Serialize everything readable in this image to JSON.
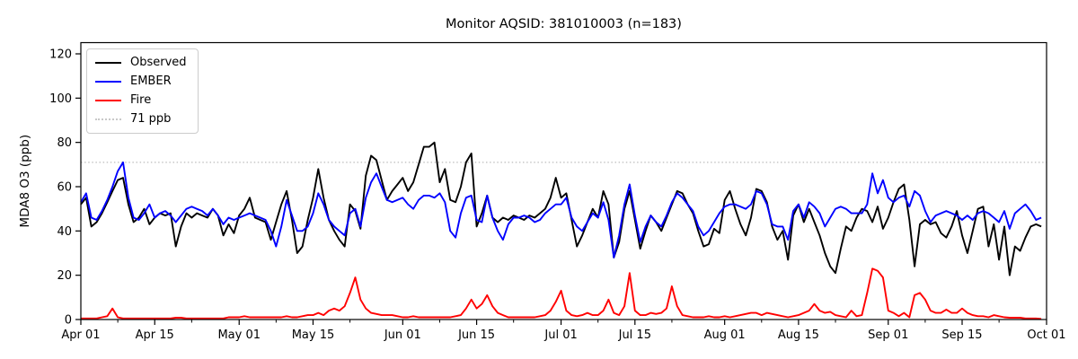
{
  "title": "Monitor AQSID: 381010003 (n=183)",
  "legend": {
    "items": [
      {
        "label": "Observed",
        "color": "#000000",
        "style": "solid"
      },
      {
        "label": "EMBER",
        "color": "#0000ff",
        "style": "solid"
      },
      {
        "label": "Fire",
        "color": "#ff0000",
        "style": "solid"
      },
      {
        "label": "71 ppb",
        "color": "#c8c8c8",
        "style": "dotted"
      }
    ]
  },
  "chart_data": {
    "type": "line",
    "title": "Monitor AQSID: 381010003 (n=183)",
    "xlabel": "",
    "ylabel": "MDA8 O3 (ppb)",
    "n_points": 183,
    "x_unit": "day index from Apr 01",
    "ylim": [
      0,
      125
    ],
    "yticks": [
      0,
      20,
      40,
      60,
      80,
      100,
      120
    ],
    "x_major_ticks": [
      {
        "day": 0,
        "label": "Apr 01"
      },
      {
        "day": 14,
        "label": "Apr 15"
      },
      {
        "day": 30,
        "label": "May 01"
      },
      {
        "day": 44,
        "label": "May 15"
      },
      {
        "day": 61,
        "label": "Jun 01"
      },
      {
        "day": 75,
        "label": "Jun 15"
      },
      {
        "day": 91,
        "label": "Jul 01"
      },
      {
        "day": 105,
        "label": "Jul 15"
      },
      {
        "day": 122,
        "label": "Aug 01"
      },
      {
        "day": 136,
        "label": "Aug 15"
      },
      {
        "day": 153,
        "label": "Sep 01"
      },
      {
        "day": 167,
        "label": "Sep 15"
      },
      {
        "day": 183,
        "label": "Oct 01"
      }
    ],
    "x_minor_tick_days": [
      7,
      21,
      37,
      51,
      68,
      82,
      98,
      112,
      129,
      143,
      160,
      174
    ],
    "threshold": {
      "value": 71,
      "label": "71 ppb",
      "color": "#c8c8c8",
      "linestyle": "dotted"
    },
    "grid": false,
    "legend_position": "upper left",
    "series": [
      {
        "name": "Observed",
        "color": "#000000",
        "values": [
          52,
          55,
          42,
          44,
          48,
          53,
          58,
          63,
          64,
          52,
          44,
          46,
          50,
          43,
          46,
          48,
          47,
          48,
          33,
          42,
          48,
          46,
          48,
          47,
          46,
          50,
          47,
          38,
          43,
          39,
          47,
          50,
          55,
          46,
          45,
          44,
          36,
          44,
          52,
          58,
          45,
          30,
          33,
          45,
          55,
          68,
          55,
          45,
          40,
          36,
          33,
          52,
          49,
          41,
          65,
          74,
          72,
          63,
          54,
          58,
          61,
          64,
          58,
          62,
          70,
          78,
          78,
          80,
          62,
          68,
          54,
          53,
          60,
          71,
          75,
          42,
          48,
          56,
          46,
          44,
          46,
          45,
          47,
          46,
          45,
          47,
          46,
          48,
          50,
          55,
          64,
          55,
          57,
          45,
          33,
          38,
          44,
          50,
          46,
          58,
          52,
          28,
          35,
          50,
          58,
          45,
          32,
          40,
          47,
          44,
          40,
          46,
          52,
          58,
          57,
          52,
          48,
          40,
          33,
          34,
          41,
          39,
          54,
          58,
          50,
          43,
          38,
          46,
          59,
          58,
          53,
          42,
          36,
          40,
          27,
          47,
          52,
          44,
          50,
          44,
          38,
          30,
          24,
          21,
          32,
          42,
          40,
          46,
          50,
          49,
          44,
          51,
          41,
          46,
          53,
          59,
          61,
          45,
          24,
          43,
          45,
          43,
          44,
          39,
          37,
          42,
          49,
          38,
          30,
          40,
          50,
          51,
          33,
          43,
          27,
          42,
          20,
          33,
          31,
          37,
          42,
          43,
          42
        ]
      },
      {
        "name": "EMBER",
        "color": "#0000ff",
        "values": [
          53,
          57,
          46,
          45,
          49,
          54,
          60,
          67,
          71,
          55,
          46,
          45,
          48,
          52,
          46,
          48,
          49,
          47,
          44,
          47,
          50,
          51,
          50,
          49,
          47,
          50,
          47,
          43,
          46,
          45,
          46,
          47,
          48,
          47,
          46,
          45,
          40,
          33,
          42,
          54,
          47,
          40,
          40,
          42,
          48,
          57,
          52,
          45,
          42,
          40,
          38,
          48,
          50,
          42,
          55,
          62,
          66,
          60,
          54,
          53,
          54,
          55,
          52,
          50,
          54,
          56,
          56,
          55,
          57,
          53,
          40,
          37,
          48,
          55,
          56,
          45,
          44,
          56,
          46,
          40,
          36,
          43,
          46,
          46,
          47,
          46,
          44,
          45,
          48,
          50,
          52,
          52,
          55,
          46,
          42,
          40,
          44,
          48,
          46,
          53,
          45,
          28,
          38,
          52,
          61,
          47,
          35,
          42,
          47,
          44,
          42,
          47,
          53,
          57,
          55,
          52,
          49,
          42,
          38,
          40,
          44,
          48,
          51,
          52,
          52,
          51,
          50,
          52,
          58,
          57,
          52,
          43,
          42,
          42,
          36,
          49,
          52,
          46,
          53,
          51,
          48,
          42,
          46,
          50,
          51,
          50,
          48,
          48,
          48,
          52,
          66,
          57,
          63,
          55,
          53,
          55,
          56,
          51,
          58,
          56,
          49,
          44,
          47,
          48,
          49,
          48,
          47,
          45,
          47,
          45,
          48,
          49,
          48,
          46,
          44,
          49,
          41,
          48,
          50,
          52,
          49,
          45,
          46
        ]
      },
      {
        "name": "Fire",
        "color": "#ff0000",
        "values": [
          0.5,
          0.5,
          0.5,
          0.5,
          1,
          1.5,
          5,
          1,
          0.5,
          0.5,
          0.5,
          0.5,
          0.5,
          0.5,
          0.5,
          0.5,
          0.5,
          0.5,
          0.8,
          0.8,
          0.5,
          0.5,
          0.5,
          0.5,
          0.5,
          0.5,
          0.5,
          0.5,
          1,
          1,
          1,
          1.5,
          1,
          1,
          1,
          1,
          1,
          1,
          1,
          1.5,
          1,
          1,
          1.5,
          2,
          2,
          3,
          2,
          4,
          5,
          4,
          6,
          12,
          19,
          9,
          5,
          3,
          2.5,
          2,
          2,
          2,
          1.5,
          1,
          1,
          1.5,
          1,
          1,
          1,
          1,
          1,
          1,
          1,
          1.5,
          2,
          5,
          9,
          5,
          7,
          11,
          6,
          3,
          2,
          1,
          1,
          1,
          1,
          1,
          1,
          1.5,
          2,
          4,
          8,
          13,
          4,
          2,
          1.5,
          2,
          3,
          2,
          2,
          4,
          9,
          3,
          2,
          6,
          21,
          4,
          2,
          2,
          3,
          2.5,
          3,
          5,
          15,
          6,
          2,
          1.5,
          1,
          1,
          1,
          1.5,
          1,
          1,
          1.5,
          1,
          1.5,
          2,
          2.5,
          3,
          3,
          2,
          3,
          2.5,
          2,
          1.5,
          1,
          1.5,
          2,
          3,
          4,
          7,
          4,
          3,
          3.5,
          2,
          1.5,
          1,
          4,
          1.5,
          2,
          12,
          23,
          22,
          19,
          4,
          3,
          1.5,
          3,
          1,
          11,
          12,
          9,
          4,
          3,
          3,
          4.5,
          3,
          3,
          5,
          3,
          2,
          1.5,
          1.5,
          1,
          2,
          1.5,
          1,
          0.8,
          0.8,
          0.8,
          0.5,
          0.5,
          0.5,
          0.3
        ]
      }
    ]
  }
}
